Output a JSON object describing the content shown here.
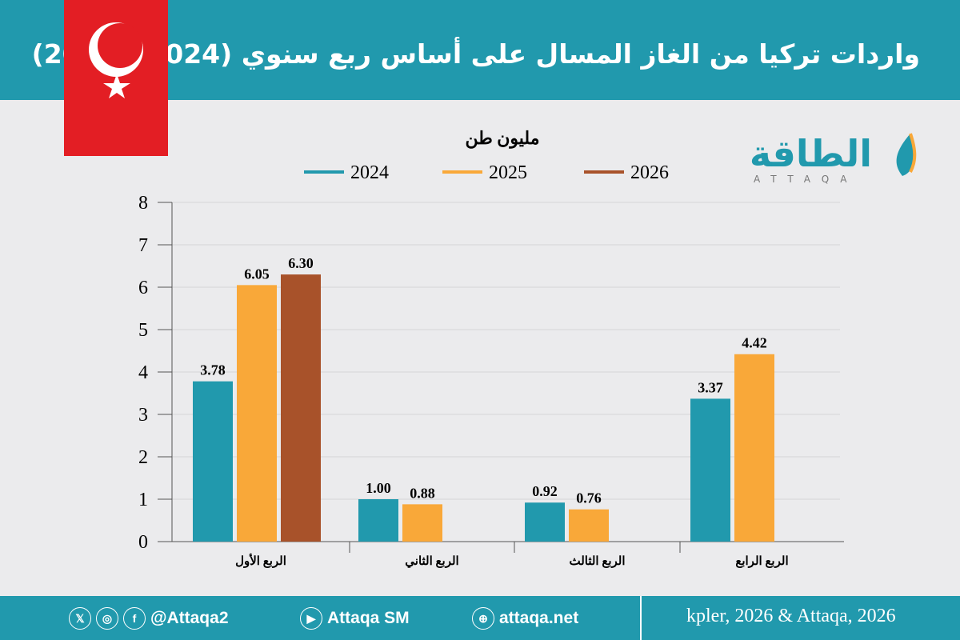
{
  "header": {
    "title": "واردات تركيا من الغاز المسال على أساس ربع سنوي (2024 - 2026)"
  },
  "logo": {
    "text": "الطاقة",
    "sub": "ATTAQA"
  },
  "chart_data": {
    "type": "bar",
    "title": "",
    "ylabel": "مليون طن",
    "ylim": [
      0,
      8
    ],
    "yticks": [
      "0",
      "1",
      "2",
      "3",
      "4",
      "5",
      "6",
      "7",
      "8"
    ],
    "grid": true,
    "legend_position": "top",
    "categories": [
      "الربع الأول",
      "الربع الثاني",
      "الربع الثالث",
      "الربع الرابع"
    ],
    "series": [
      {
        "name": "2024",
        "color": "#2199ad",
        "values": [
          3.78,
          1.0,
          0.92,
          3.37
        ],
        "labels": [
          "3.78",
          "1.00",
          "0.92",
          "3.37"
        ]
      },
      {
        "name": "2025",
        "color": "#f9a839",
        "values": [
          6.05,
          0.88,
          0.76,
          4.42
        ],
        "labels": [
          "6.05",
          "0.88",
          "0.76",
          "4.42"
        ]
      },
      {
        "name": "2026",
        "color": "#a8522a",
        "values": [
          6.3,
          null,
          null,
          null
        ],
        "labels": [
          "6.30",
          "",
          "",
          ""
        ]
      }
    ]
  },
  "footer": {
    "handle": "@Attaqa2",
    "youtube": "Attaqa SM",
    "website": "attaqa.net",
    "source": "kpler, 2026 & Attaqa, 2026"
  },
  "icons": {
    "x": "x-icon",
    "instagram": "instagram-icon",
    "facebook": "facebook-icon",
    "youtube": "youtube-icon",
    "web": "globe-icon"
  }
}
